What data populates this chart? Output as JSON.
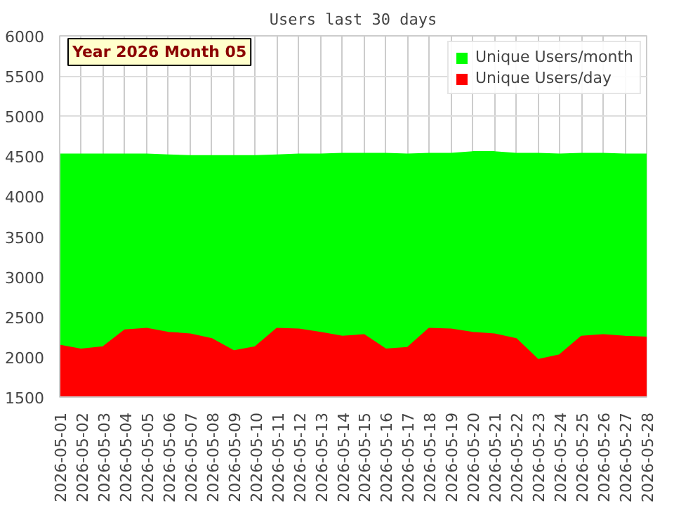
{
  "chart_data": {
    "type": "area",
    "title": "Users last 30 days",
    "annotations": [
      "Year 2026 Month 05"
    ],
    "categories": [
      "2026-05-01",
      "2026-05-02",
      "2026-05-03",
      "2026-05-04",
      "2026-05-05",
      "2026-05-06",
      "2026-05-07",
      "2026-05-08",
      "2026-05-09",
      "2026-05-10",
      "2026-05-11",
      "2026-05-12",
      "2026-05-13",
      "2026-05-14",
      "2026-05-15",
      "2026-05-16",
      "2026-05-17",
      "2026-05-18",
      "2026-05-19",
      "2026-05-20",
      "2026-05-21",
      "2026-05-22",
      "2026-05-23",
      "2026-05-24",
      "2026-05-25",
      "2026-05-26",
      "2026-05-27",
      "2026-05-28"
    ],
    "series": [
      {
        "name": "Unique Users/month",
        "color": "#00ff00",
        "values": [
          4520,
          4520,
          4520,
          4520,
          4520,
          4510,
          4500,
          4500,
          4500,
          4500,
          4510,
          4520,
          4520,
          4530,
          4530,
          4530,
          4520,
          4530,
          4530,
          4550,
          4550,
          4530,
          4530,
          4520,
          4530,
          4530,
          4520,
          4520
        ]
      },
      {
        "name": "Unique Users/day",
        "color": "#ff0000",
        "values": [
          2140,
          2090,
          2120,
          2330,
          2350,
          2300,
          2280,
          2220,
          2070,
          2120,
          2350,
          2340,
          2300,
          2250,
          2270,
          2090,
          2110,
          2350,
          2340,
          2300,
          2280,
          2220,
          1960,
          2020,
          2250,
          2270,
          2250,
          2240
        ]
      }
    ],
    "ylim": [
      1500,
      6000
    ],
    "yticks": [
      1500,
      2000,
      2500,
      3000,
      3500,
      4000,
      4500,
      5000,
      5500,
      6000
    ],
    "grid": true,
    "legend": "top right"
  }
}
